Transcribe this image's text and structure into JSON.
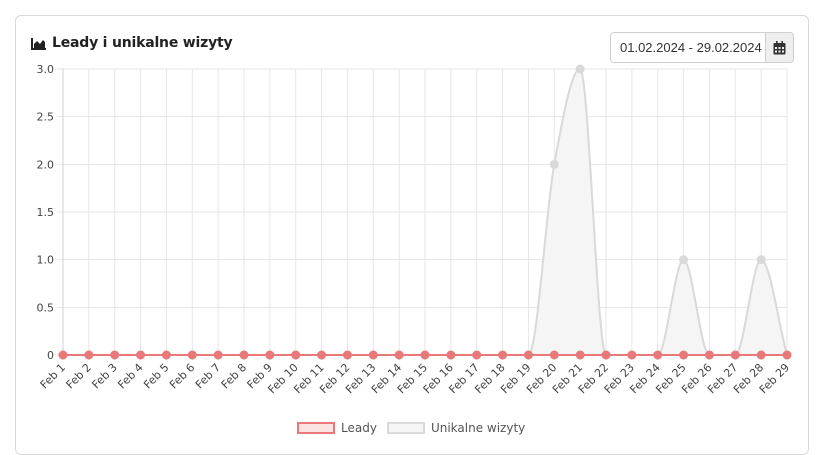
{
  "widget": {
    "title": "Leady i unikalne wizyty",
    "title_icon": "area-chart-icon",
    "date_range": "01.02.2024 - 29.02.2024",
    "calendar_icon": "calendar-icon"
  },
  "chart_data": {
    "type": "area",
    "title": "Leady i unikalne wizyty",
    "categories": [
      "Feb 1",
      "Feb 2",
      "Feb 3",
      "Feb 4",
      "Feb 5",
      "Feb 6",
      "Feb 7",
      "Feb 8",
      "Feb 9",
      "Feb 10",
      "Feb 11",
      "Feb 12",
      "Feb 13",
      "Feb 14",
      "Feb 15",
      "Feb 16",
      "Feb 17",
      "Feb 18",
      "Feb 19",
      "Feb 20",
      "Feb 21",
      "Feb 22",
      "Feb 23",
      "Feb 24",
      "Feb 25",
      "Feb 26",
      "Feb 27",
      "Feb 28",
      "Feb 29"
    ],
    "series": [
      {
        "name": "Leady",
        "color": "#e8787a",
        "fill": "#fbe3e4",
        "values": [
          0,
          0,
          0,
          0,
          0,
          0,
          0,
          0,
          0,
          0,
          0,
          0,
          0,
          0,
          0,
          0,
          0,
          0,
          0,
          0,
          0,
          0,
          0,
          0,
          0,
          0,
          0,
          0,
          0
        ]
      },
      {
        "name": "Unikalne wizyty",
        "color": "#d9d9d9",
        "fill": "#f5f5f5",
        "values": [
          0,
          0,
          0,
          0,
          0,
          0,
          0,
          0,
          0,
          0,
          0,
          0,
          0,
          0,
          0,
          0,
          0,
          0,
          0,
          2,
          3,
          0,
          0,
          0,
          1,
          0,
          0,
          1,
          0
        ]
      }
    ],
    "ylim": [
      0,
      3
    ],
    "yticks": [
      "0",
      "0.5",
      "1.0",
      "1.5",
      "2.0",
      "2.5",
      "3.0"
    ],
    "grid": true,
    "legend_position": "bottom"
  }
}
